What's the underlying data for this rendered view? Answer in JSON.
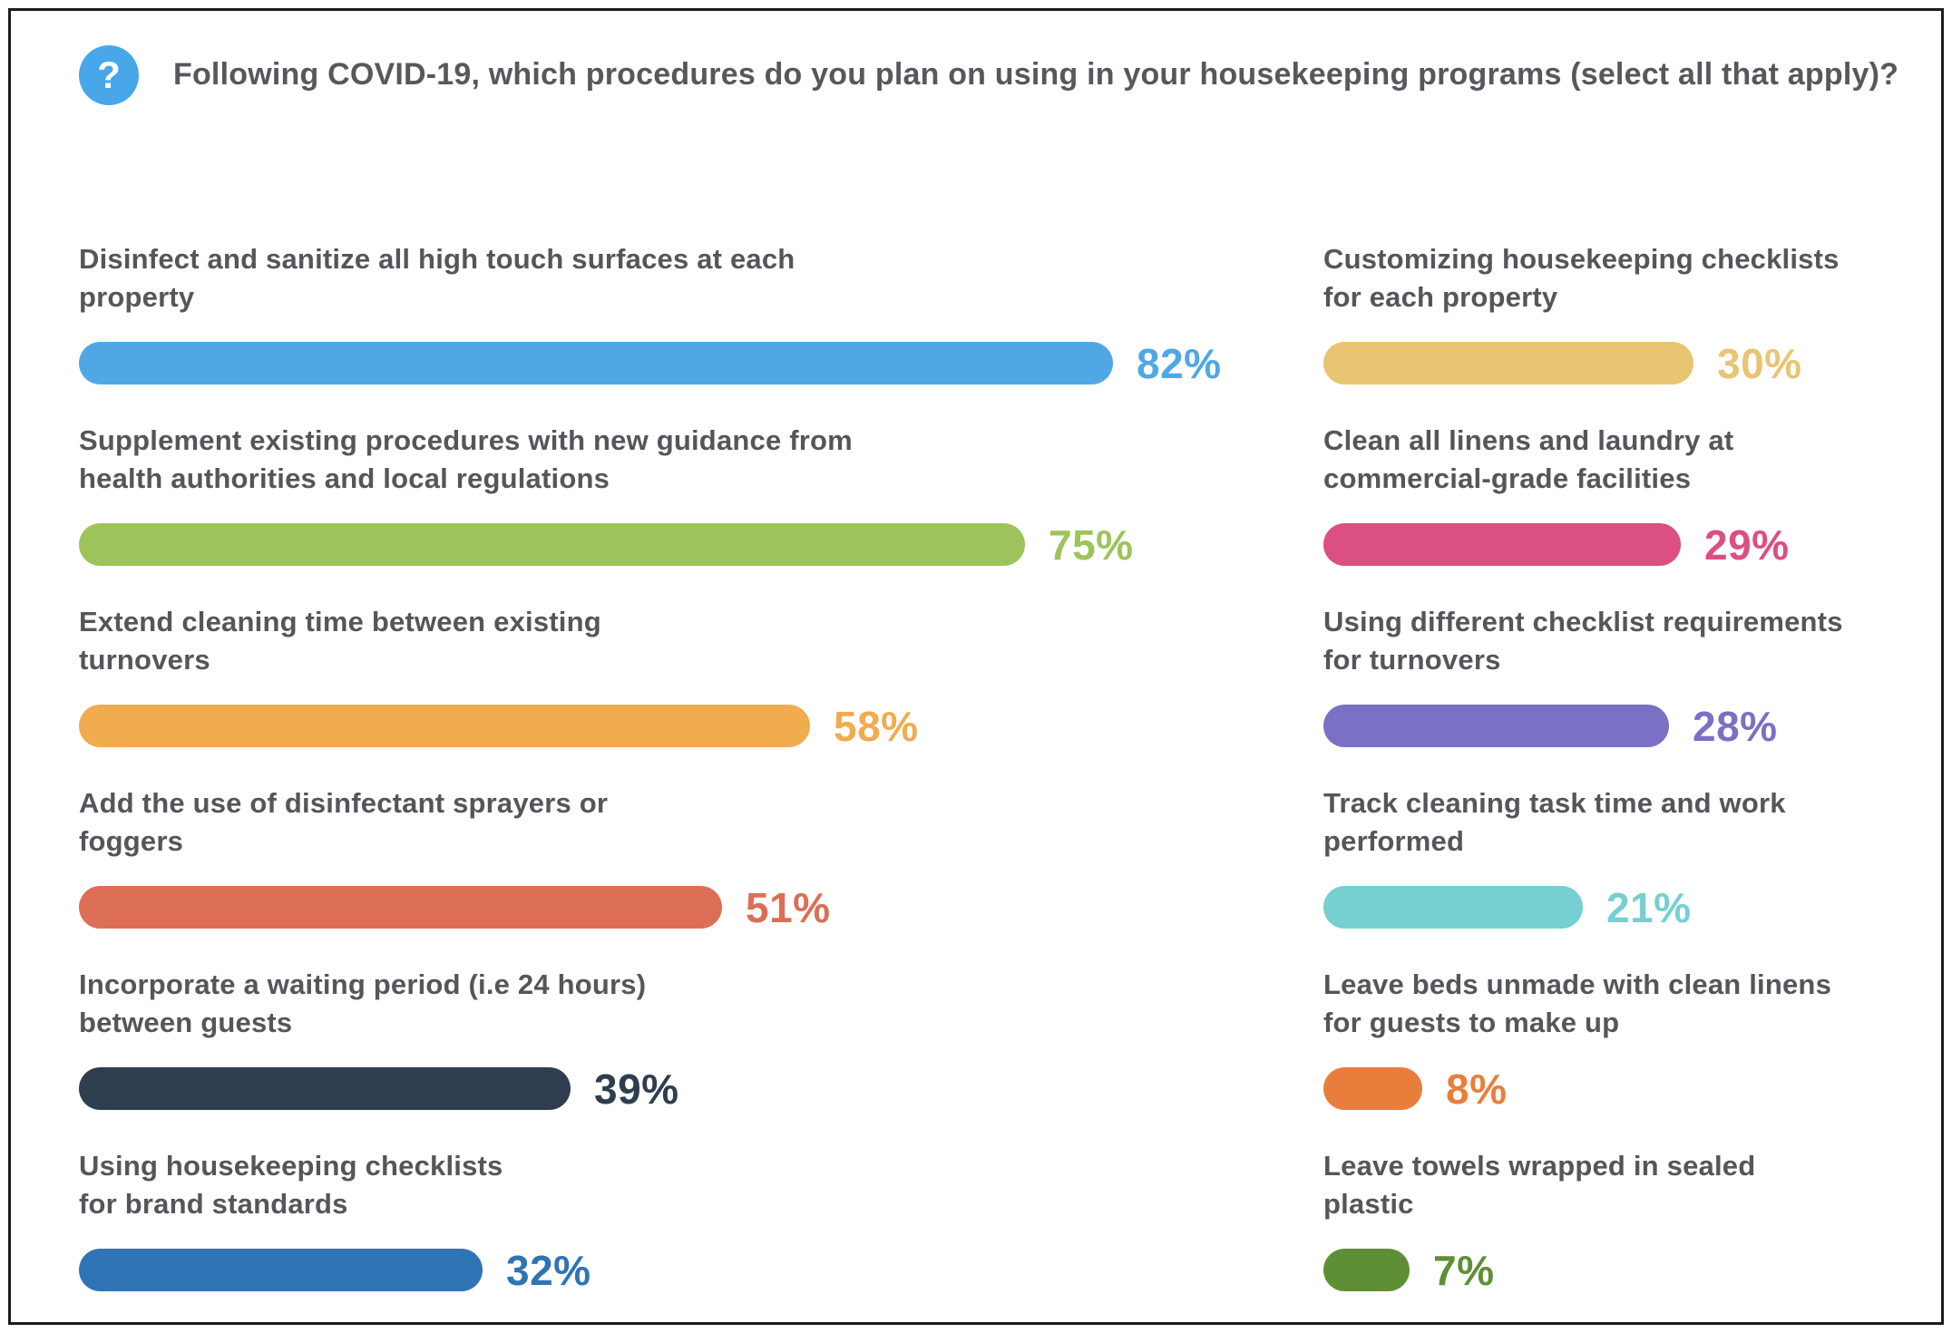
{
  "header": {
    "icon": "question-mark-icon",
    "icon_bg_color": "#47a7e8",
    "title": "Following COVID-19, which procedures do you plan on using in your housekeeping programs (select all that apply)?"
  },
  "chart_data": {
    "type": "bar",
    "orientation": "horizontal",
    "unit": "percent",
    "value_range": [
      0,
      100
    ],
    "grid": false,
    "legend": false,
    "title": "Following COVID-19, which procedures do you plan on using in your housekeeping programs (select all that apply)?",
    "columns": [
      {
        "items": [
          {
            "label": "Disinfect and sanitize all high touch surfaces at each\nproperty",
            "value": 82,
            "value_label": "82%",
            "color": "#4fa8e4"
          },
          {
            "label": "Supplement existing procedures with new guidance from\nhealth authorities and local regulations",
            "value": 75,
            "value_label": "75%",
            "color": "#9dc45c"
          },
          {
            "label": "Extend cleaning time between existing\nturnovers",
            "value": 58,
            "value_label": "58%",
            "color": "#f0ac4e"
          },
          {
            "label": "Add the use of disinfectant sprayers or\nfoggers",
            "value": 51,
            "value_label": "51%",
            "color": "#dc6e55"
          },
          {
            "label": "Incorporate a waiting period (i.e 24 hours)\nbetween guests",
            "value": 39,
            "value_label": "39%",
            "color": "#2e3e4e"
          },
          {
            "label": "Using housekeeping checklists\nfor brand standards",
            "value": 32,
            "value_label": "32%",
            "color": "#2f74b5"
          }
        ]
      },
      {
        "items": [
          {
            "label": "Customizing housekeeping checklists\nfor each property",
            "value": 30,
            "value_label": "30%",
            "color": "#e9c472"
          },
          {
            "label": "Clean all linens and laundry at\ncommercial-grade facilities",
            "value": 29,
            "value_label": "29%",
            "color": "#db4f82"
          },
          {
            "label": "Using different checklist requirements\nfor turnovers",
            "value": 28,
            "value_label": "28%",
            "color": "#7a70c4"
          },
          {
            "label": "Track cleaning task time and work\nperformed",
            "value": 21,
            "value_label": "21%",
            "color": "#76cfd1"
          },
          {
            "label": "Leave beds unmade with clean linens\nfor guests to make up",
            "value": 8,
            "value_label": "8%",
            "color": "#e97e3c"
          },
          {
            "label": "Leave towels wrapped in sealed\nplastic",
            "value": 7,
            "value_label": "7%",
            "color": "#5f8f35"
          }
        ]
      }
    ]
  }
}
